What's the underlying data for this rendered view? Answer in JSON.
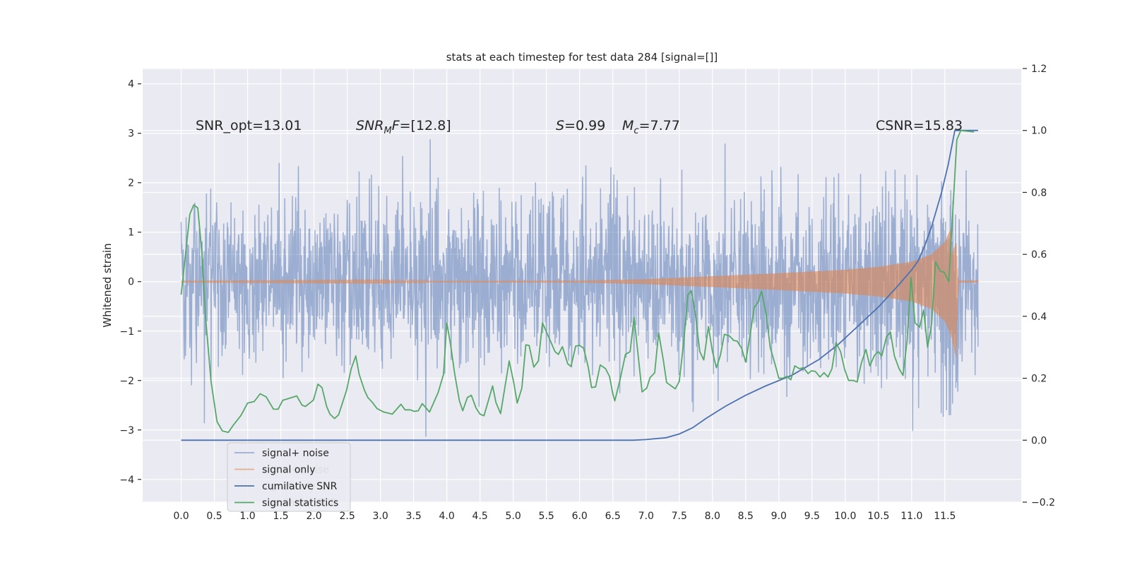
{
  "chart_data": {
    "type": "line",
    "title": "stats at each timestep for test data 284 [signal=[]]",
    "xlabel": "",
    "ylabel": "Whitened strain",
    "xlim": [
      -0.58,
      12.65
    ],
    "ylim": [
      -4.46,
      4.31
    ],
    "ylim_right": [
      -0.2,
      1.2
    ],
    "grid": true,
    "x_ticks": [
      "0.0",
      "0.5",
      "1.0",
      "1.5",
      "2.0",
      "2.5",
      "3.0",
      "3.5",
      "4.0",
      "4.5",
      "5.0",
      "5.5",
      "6.0",
      "6.5",
      "7.0",
      "7.5",
      "8.0",
      "8.5",
      "9.0",
      "9.5",
      "10.0",
      "10.5",
      "11.0",
      "11.5"
    ],
    "x_tick_values": [
      0,
      0.5,
      1,
      1.5,
      2,
      2.5,
      3,
      3.5,
      4,
      4.5,
      5,
      5.5,
      6,
      6.5,
      7,
      7.5,
      8,
      8.5,
      9,
      9.5,
      10,
      10.5,
      11,
      11.5
    ],
    "y_left_ticks": [
      "−4",
      "−3",
      "−2",
      "−1",
      "0",
      "1",
      "2",
      "3",
      "4"
    ],
    "y_left_tick_values": [
      -4,
      -3,
      -2,
      -1,
      0,
      1,
      2,
      3,
      4
    ],
    "y_right_ticks": [
      "−0.2",
      "0.0",
      "0.2",
      "0.4",
      "0.6",
      "0.8",
      "1.0",
      "1.2"
    ],
    "y_right_tick_values": [
      -0.2,
      0,
      0.2,
      0.4,
      0.6,
      0.8,
      1.0,
      1.2
    ],
    "annotations": {
      "snr_opt": "SNR_opt=13.01",
      "snr_mf": {
        "main": "SNR",
        "sub": "M",
        "rest": "F",
        "value": "=[12.8]"
      },
      "s": {
        "symbol": "S",
        "value": "=0.99"
      },
      "mc": {
        "main": "M",
        "sub": "c",
        "value": "=7.77"
      },
      "csnr": "CSNR=15.83"
    },
    "legend": {
      "placement": "lower-left",
      "entries": [
        {
          "label": "signal+ noise",
          "color": "#4c72b0",
          "alpha": 0.5
        },
        {
          "label": "signal only",
          "color": "#dd8452",
          "alpha": 0.6
        },
        {
          "label": "cumilative SNR",
          "color": "#4c72b0",
          "alpha": 1
        },
        {
          "label": "signal statistics",
          "color": "#55a868",
          "alpha": 1
        }
      ]
    },
    "series": [
      {
        "name": "signal+ noise",
        "axis": "left",
        "color": "#4c72b0",
        "t_range": [
          0,
          12.0
        ],
        "sample_step": 0.005,
        "noise_std": 0.85,
        "seed": 284
      },
      {
        "name": "signal only",
        "axis": "left",
        "color": "#dd8452",
        "t_range": [
          0,
          12.0
        ],
        "envelope": [
          [
            0,
            0.005
          ],
          [
            6,
            0.02
          ],
          [
            7,
            0.05
          ],
          [
            8,
            0.11
          ],
          [
            9,
            0.17
          ],
          [
            10,
            0.24
          ],
          [
            10.5,
            0.3
          ],
          [
            11,
            0.4
          ],
          [
            11.3,
            0.55
          ],
          [
            11.5,
            0.8
          ],
          [
            11.6,
            1.1
          ],
          [
            11.67,
            1.55
          ],
          [
            11.7,
            0.02
          ],
          [
            12.0,
            0.02
          ]
        ]
      },
      {
        "name": "cumilative SNR",
        "axis": "right",
        "color": "#4c72b0",
        "points": [
          [
            0,
            0
          ],
          [
            6.8,
            0
          ],
          [
            7.0,
            0.002
          ],
          [
            7.3,
            0.008
          ],
          [
            7.5,
            0.02
          ],
          [
            7.7,
            0.04
          ],
          [
            7.9,
            0.07
          ],
          [
            8.2,
            0.11
          ],
          [
            8.5,
            0.145
          ],
          [
            8.8,
            0.175
          ],
          [
            9.2,
            0.21
          ],
          [
            9.6,
            0.26
          ],
          [
            9.9,
            0.31
          ],
          [
            10.2,
            0.37
          ],
          [
            10.5,
            0.43
          ],
          [
            10.8,
            0.5
          ],
          [
            11.0,
            0.55
          ],
          [
            11.1,
            0.58
          ],
          [
            11.2,
            0.63
          ],
          [
            11.3,
            0.69
          ],
          [
            11.45,
            0.8
          ],
          [
            11.55,
            0.89
          ],
          [
            11.65,
            1.0
          ],
          [
            12.0,
            1.0
          ]
        ]
      },
      {
        "name": "signal statistics",
        "axis": "right",
        "color": "#55a868",
        "points": [
          [
            0,
            0.47
          ],
          [
            0.08,
            0.63
          ],
          [
            0.13,
            0.73
          ],
          [
            0.19,
            0.76
          ],
          [
            0.25,
            0.75
          ],
          [
            0.31,
            0.61
          ],
          [
            0.37,
            0.39
          ],
          [
            0.45,
            0.19
          ],
          [
            0.54,
            0.06
          ],
          [
            0.62,
            0.03
          ],
          [
            0.71,
            0.025
          ],
          [
            0.79,
            0.05
          ],
          [
            0.9,
            0.08
          ],
          [
            1.0,
            0.12
          ],
          [
            1.1,
            0.125
          ],
          [
            1.19,
            0.15
          ],
          [
            1.28,
            0.14
          ],
          [
            1.39,
            0.1
          ],
          [
            1.46,
            0.1
          ],
          [
            1.53,
            0.129
          ],
          [
            1.61,
            0.134
          ],
          [
            1.74,
            0.143
          ],
          [
            1.82,
            0.113
          ],
          [
            1.87,
            0.109
          ],
          [
            1.99,
            0.129
          ],
          [
            2.06,
            0.181
          ],
          [
            2.12,
            0.17
          ],
          [
            2.19,
            0.109
          ],
          [
            2.24,
            0.084
          ],
          [
            2.31,
            0.07
          ],
          [
            2.37,
            0.082
          ],
          [
            2.49,
            0.161
          ],
          [
            2.56,
            0.231
          ],
          [
            2.63,
            0.272
          ],
          [
            2.68,
            0.213
          ],
          [
            2.76,
            0.161
          ],
          [
            2.81,
            0.138
          ],
          [
            2.88,
            0.122
          ],
          [
            2.95,
            0.102
          ],
          [
            3.05,
            0.091
          ],
          [
            3.18,
            0.084
          ],
          [
            3.31,
            0.116
          ],
          [
            3.37,
            0.098
          ],
          [
            3.45,
            0.098
          ],
          [
            3.51,
            0.093
          ],
          [
            3.57,
            0.095
          ],
          [
            3.63,
            0.118
          ],
          [
            3.74,
            0.091
          ],
          [
            3.87,
            0.154
          ],
          [
            3.95,
            0.213
          ],
          [
            4.0,
            0.379
          ],
          [
            4.06,
            0.304
          ],
          [
            4.12,
            0.213
          ],
          [
            4.19,
            0.127
          ],
          [
            4.24,
            0.095
          ],
          [
            4.31,
            0.138
          ],
          [
            4.37,
            0.145
          ],
          [
            4.44,
            0.104
          ],
          [
            4.5,
            0.084
          ],
          [
            4.56,
            0.079
          ],
          [
            4.69,
            0.175
          ],
          [
            4.74,
            0.122
          ],
          [
            4.81,
            0.086
          ],
          [
            4.94,
            0.256
          ],
          [
            5.01,
            0.184
          ],
          [
            5.06,
            0.12
          ],
          [
            5.13,
            0.168
          ],
          [
            5.19,
            0.308
          ],
          [
            5.24,
            0.306
          ],
          [
            5.31,
            0.236
          ],
          [
            5.38,
            0.256
          ],
          [
            5.44,
            0.379
          ],
          [
            5.63,
            0.286
          ],
          [
            5.68,
            0.277
          ],
          [
            5.74,
            0.302
          ],
          [
            5.82,
            0.247
          ],
          [
            5.87,
            0.238
          ],
          [
            5.94,
            0.304
          ],
          [
            6.0,
            0.306
          ],
          [
            6.06,
            0.297
          ],
          [
            6.13,
            0.236
          ],
          [
            6.18,
            0.17
          ],
          [
            6.24,
            0.172
          ],
          [
            6.31,
            0.243
          ],
          [
            6.39,
            0.231
          ],
          [
            6.45,
            0.206
          ],
          [
            6.5,
            0.15
          ],
          [
            6.53,
            0.127
          ],
          [
            6.61,
            0.197
          ],
          [
            6.69,
            0.277
          ],
          [
            6.76,
            0.286
          ],
          [
            6.82,
            0.397
          ],
          [
            6.94,
            0.156
          ],
          [
            7.01,
            0.168
          ],
          [
            7.06,
            0.202
          ],
          [
            7.13,
            0.218
          ],
          [
            7.19,
            0.347
          ],
          [
            7.26,
            0.259
          ],
          [
            7.31,
            0.186
          ],
          [
            7.44,
            0.166
          ],
          [
            7.5,
            0.19
          ],
          [
            7.57,
            0.322
          ],
          [
            7.63,
            0.469
          ],
          [
            7.68,
            0.483
          ],
          [
            7.74,
            0.413
          ],
          [
            7.81,
            0.286
          ],
          [
            7.87,
            0.259
          ],
          [
            7.94,
            0.367
          ],
          [
            8.0,
            0.286
          ],
          [
            8.06,
            0.234
          ],
          [
            8.12,
            0.274
          ],
          [
            8.18,
            0.342
          ],
          [
            8.26,
            0.336
          ],
          [
            8.32,
            0.322
          ],
          [
            8.37,
            0.32
          ],
          [
            8.44,
            0.297
          ],
          [
            8.5,
            0.252
          ],
          [
            8.56,
            0.331
          ],
          [
            8.63,
            0.429
          ],
          [
            8.68,
            0.444
          ],
          [
            8.74,
            0.481
          ],
          [
            8.81,
            0.406
          ],
          [
            8.87,
            0.299
          ],
          [
            8.94,
            0.247
          ],
          [
            9.0,
            0.2
          ],
          [
            9.06,
            0.2
          ],
          [
            9.12,
            0.206
          ],
          [
            9.18,
            0.195
          ],
          [
            9.24,
            0.24
          ],
          [
            9.31,
            0.231
          ],
          [
            9.37,
            0.234
          ],
          [
            9.44,
            0.215
          ],
          [
            9.49,
            0.224
          ],
          [
            9.55,
            0.222
          ],
          [
            9.62,
            0.204
          ],
          [
            9.68,
            0.218
          ],
          [
            9.74,
            0.204
          ],
          [
            9.8,
            0.231
          ],
          [
            9.86,
            0.315
          ],
          [
            9.93,
            0.286
          ],
          [
            9.99,
            0.229
          ],
          [
            10.05,
            0.193
          ],
          [
            10.12,
            0.193
          ],
          [
            10.18,
            0.188
          ],
          [
            10.24,
            0.247
          ],
          [
            10.31,
            0.293
          ],
          [
            10.37,
            0.24
          ],
          [
            10.44,
            0.274
          ],
          [
            10.5,
            0.286
          ],
          [
            10.55,
            0.272
          ],
          [
            10.62,
            0.333
          ],
          [
            10.68,
            0.349
          ],
          [
            10.74,
            0.272
          ],
          [
            10.81,
            0.231
          ],
          [
            10.87,
            0.209
          ],
          [
            10.93,
            0.32
          ],
          [
            10.99,
            0.526
          ],
          [
            11.05,
            0.379
          ],
          [
            11.12,
            0.365
          ],
          [
            11.18,
            0.42
          ],
          [
            11.24,
            0.3
          ],
          [
            11.3,
            0.376
          ],
          [
            11.36,
            0.576
          ],
          [
            11.43,
            0.546
          ],
          [
            11.49,
            0.542
          ],
          [
            11.56,
            0.512
          ],
          [
            11.68,
            0.97
          ],
          [
            11.74,
            1.0
          ],
          [
            11.94,
            0.995
          ]
        ]
      }
    ]
  }
}
